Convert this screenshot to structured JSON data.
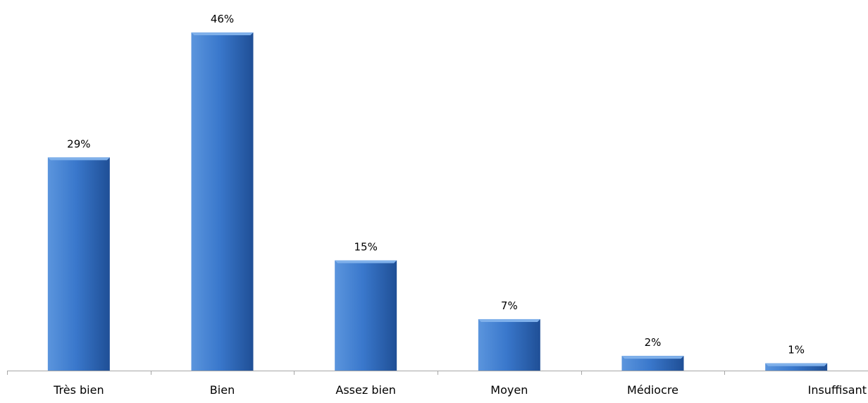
{
  "chart_data": {
    "type": "bar",
    "title": "",
    "xlabel": "",
    "ylabel": "",
    "categories": [
      "Très bien",
      "Bien",
      "Assez bien",
      "Moyen",
      "Médiocre",
      "Insuffisant"
    ],
    "values": [
      29,
      46,
      15,
      7,
      2,
      1
    ],
    "data_labels": [
      "29%",
      "46%",
      "15%",
      "7%",
      "2%",
      "1%"
    ],
    "unit": "%",
    "ylim": [
      0,
      46
    ],
    "grid": false,
    "legend": "none",
    "colors": {
      "bar_light": "#5b95dd",
      "bar_mid": "#3a78cc",
      "bar_dark": "#1f4f96",
      "bar_top": "#7fb0ea",
      "axis": "#a6a6a6"
    }
  }
}
